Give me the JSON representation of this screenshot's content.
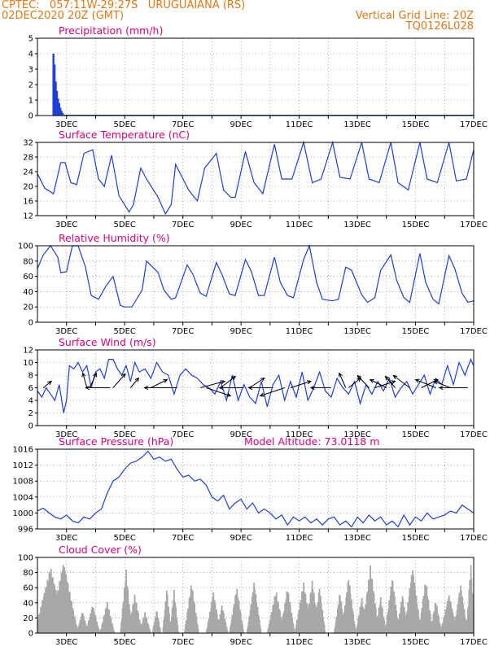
{
  "header": {
    "line1_left": "CPTEC:   057:11W-29:27S   URUGUAIANA (RS)",
    "line2_left": "02DEC2020 20Z (GMT)",
    "line1_right": "Vertical Grid Line: 20Z",
    "line2_right": "TQ0126L028",
    "color": "#e07818"
  },
  "colors": {
    "title": "#e0007a",
    "line": "#1f3fd8",
    "precip_bar": "#1f3fd8",
    "cloud_bar": "#a8a8a8",
    "arrow": "#000000"
  },
  "chart_data": [
    {
      "type": "bar",
      "title": "Precipitation (mm/h)",
      "ylim": [
        0,
        5
      ],
      "yticks": [
        "0",
        "1",
        "2",
        "3",
        "4",
        "5"
      ],
      "xticks": [
        "3DEC",
        "5DEC",
        "7DEC",
        "9DEC",
        "11DEC",
        "13DEC",
        "15DEC",
        "17DEC"
      ],
      "x_day_range": [
        2.0,
        17.0
      ],
      "bars": [
        {
          "day": 2.55,
          "value": 4.0
        },
        {
          "day": 2.59,
          "value": 3.3
        },
        {
          "day": 2.63,
          "value": 2.2
        },
        {
          "day": 2.67,
          "value": 1.6
        },
        {
          "day": 2.71,
          "value": 1.1
        },
        {
          "day": 2.75,
          "value": 0.8
        },
        {
          "day": 2.79,
          "value": 0.5
        },
        {
          "day": 2.83,
          "value": 0.3
        },
        {
          "day": 2.87,
          "value": 0.15
        },
        {
          "day": 2.92,
          "value": 0.05
        }
      ]
    },
    {
      "type": "line",
      "title": "Surface Temperature (nC)",
      "ylim": [
        12,
        32
      ],
      "yticks": [
        "12",
        "16",
        "20",
        "24",
        "28",
        "32"
      ],
      "xticks": [
        "3DEC",
        "5DEC",
        "7DEC",
        "9DEC",
        "11DEC",
        "13DEC",
        "15DEC",
        "17DEC"
      ],
      "x_day_range": [
        2.0,
        17.0
      ],
      "x": [
        2.0,
        2.25,
        2.55,
        2.8,
        2.95,
        3.15,
        3.35,
        3.6,
        3.9,
        4.1,
        4.3,
        4.55,
        4.8,
        5.15,
        5.3,
        5.55,
        5.75,
        6.15,
        6.4,
        6.6,
        6.75,
        7.2,
        7.5,
        7.75,
        8.15,
        8.4,
        8.65,
        8.8,
        9.15,
        9.45,
        9.75,
        10.15,
        10.4,
        10.75,
        11.15,
        11.45,
        11.75,
        12.15,
        12.4,
        12.75,
        13.15,
        13.4,
        13.75,
        14.15,
        14.4,
        14.75,
        15.15,
        15.4,
        15.75,
        16.15,
        16.4,
        16.75,
        17.0
      ],
      "y": [
        23.5,
        19.5,
        18.0,
        26.5,
        26.5,
        21.0,
        20.5,
        29.0,
        30.0,
        22.0,
        20.0,
        28.5,
        17.5,
        13.0,
        15.0,
        25.0,
        22.0,
        17.0,
        12.5,
        15.0,
        26.0,
        19.0,
        16.0,
        25.0,
        29.0,
        19.0,
        17.0,
        17.0,
        29.5,
        21.0,
        18.0,
        31.5,
        22.0,
        22.0,
        32.0,
        21.0,
        22.0,
        32.0,
        22.5,
        22.0,
        32.0,
        22.0,
        21.0,
        32.0,
        21.0,
        19.0,
        32.0,
        22.0,
        21.0,
        32.0,
        21.5,
        22.0,
        30.0
      ]
    },
    {
      "type": "line",
      "title": "Relative Humidity (%)",
      "ylim": [
        0,
        100
      ],
      "yticks": [
        "0",
        "20",
        "40",
        "60",
        "80",
        "100"
      ],
      "xticks": [
        "3DEC",
        "5DEC",
        "7DEC",
        "9DEC",
        "11DEC",
        "13DEC",
        "15DEC",
        "17DEC"
      ],
      "x_day_range": [
        2.0,
        17.0
      ],
      "x": [
        2.0,
        2.2,
        2.45,
        2.7,
        2.8,
        3.0,
        3.2,
        3.4,
        3.65,
        3.85,
        4.1,
        4.35,
        4.6,
        4.85,
        5.0,
        5.25,
        5.6,
        5.75,
        6.15,
        6.35,
        6.6,
        6.75,
        7.15,
        7.35,
        7.6,
        7.8,
        8.15,
        8.35,
        8.6,
        8.8,
        9.15,
        9.35,
        9.6,
        9.8,
        10.15,
        10.35,
        10.6,
        10.8,
        11.15,
        11.35,
        11.6,
        11.8,
        12.15,
        12.35,
        12.6,
        12.8,
        13.15,
        13.35,
        13.6,
        13.8,
        14.15,
        14.35,
        14.6,
        14.8,
        15.15,
        15.35,
        15.6,
        15.8,
        16.15,
        16.35,
        16.6,
        16.8,
        17.0
      ],
      "y": [
        70,
        88,
        100,
        85,
        65,
        66,
        100,
        100,
        72,
        35,
        30,
        47,
        60,
        22,
        20,
        20,
        42,
        80,
        65,
        42,
        30,
        32,
        75,
        62,
        38,
        34,
        78,
        62,
        37,
        35,
        82,
        67,
        35,
        35,
        85,
        52,
        35,
        32,
        82,
        100,
        52,
        30,
        28,
        30,
        72,
        68,
        36,
        26,
        32,
        68,
        88,
        55,
        32,
        26,
        90,
        52,
        30,
        24,
        87,
        70,
        38,
        26,
        28
      ]
    },
    {
      "type": "line",
      "title": "Surface Wind (m/s)",
      "ylim": [
        0,
        12
      ],
      "yticks": [
        "0",
        "2",
        "4",
        "6",
        "8",
        "10",
        "12"
      ],
      "xticks": [
        "3DEC",
        "5DEC",
        "7DEC",
        "9DEC",
        "11DEC",
        "13DEC",
        "15DEC",
        "17DEC"
      ],
      "x_day_range": [
        2.0,
        17.0
      ],
      "x": [
        2.0,
        2.15,
        2.3,
        2.45,
        2.6,
        2.75,
        2.9,
        3.0,
        3.1,
        3.25,
        3.4,
        3.55,
        3.7,
        3.85,
        4.0,
        4.15,
        4.3,
        4.45,
        4.6,
        4.75,
        4.9,
        5.05,
        5.2,
        5.35,
        5.5,
        5.7,
        5.9,
        6.1,
        6.3,
        6.5,
        6.7,
        6.9,
        7.1,
        7.3,
        7.5,
        7.7,
        7.9,
        8.1,
        8.3,
        8.5,
        8.7,
        8.9,
        9.1,
        9.3,
        9.5,
        9.7,
        9.9,
        10.1,
        10.3,
        10.5,
        10.7,
        10.9,
        11.1,
        11.3,
        11.5,
        11.7,
        11.9,
        12.1,
        12.3,
        12.5,
        12.7,
        12.9,
        13.1,
        13.3,
        13.5,
        13.7,
        13.9,
        14.1,
        14.3,
        14.5,
        14.7,
        14.9,
        15.1,
        15.3,
        15.5,
        15.7,
        15.9,
        16.1,
        16.3,
        16.5,
        16.7,
        16.9,
        17.0
      ],
      "y": [
        5.5,
        4.5,
        6.0,
        5.0,
        4.0,
        6.5,
        2.0,
        4.0,
        9.5,
        9.0,
        10.0,
        8.5,
        9.5,
        6.0,
        8.5,
        9.0,
        7.5,
        10.5,
        10.5,
        9.0,
        8.0,
        9.5,
        7.0,
        10.0,
        8.5,
        9.0,
        7.5,
        10.0,
        8.5,
        8.0,
        5.0,
        8.0,
        9.0,
        8.0,
        7.5,
        6.5,
        6.0,
        5.0,
        7.0,
        4.0,
        8.0,
        4.0,
        6.5,
        4.5,
        3.5,
        7.0,
        3.0,
        6.5,
        8.0,
        4.0,
        7.0,
        4.5,
        8.5,
        4.0,
        6.0,
        8.5,
        5.5,
        4.5,
        7.5,
        6.0,
        5.0,
        7.0,
        3.5,
        6.5,
        5.0,
        7.0,
        5.5,
        7.5,
        4.5,
        6.0,
        7.0,
        5.0,
        6.5,
        8.0,
        5.0,
        7.5,
        6.5,
        9.5,
        6.5,
        10.0,
        8.0,
        10.5,
        9.5
      ],
      "arrows": [
        {
          "day": 2.2,
          "dx": 10,
          "dy": -8
        },
        {
          "day": 3.7,
          "dx": -5,
          "dy": -18
        },
        {
          "day": 3.8,
          "dx": 8,
          "dy": -18
        },
        {
          "day": 4.5,
          "dx": -30,
          "dy": 0
        },
        {
          "day": 4.6,
          "dx": 15,
          "dy": -17
        },
        {
          "day": 5.2,
          "dx": 10,
          "dy": -12
        },
        {
          "day": 5.9,
          "dx": 20,
          "dy": -10
        },
        {
          "day": 6.8,
          "dx": -40,
          "dy": 0
        },
        {
          "day": 7.6,
          "dx": 30,
          "dy": -8
        },
        {
          "day": 7.8,
          "dx": 30,
          "dy": 10
        },
        {
          "day": 8.3,
          "dx": 18,
          "dy": -14
        },
        {
          "day": 9.1,
          "dx": -30,
          "dy": 0
        },
        {
          "day": 9.3,
          "dx": 18,
          "dy": -12
        },
        {
          "day": 10.1,
          "dx": -30,
          "dy": 0
        },
        {
          "day": 10.5,
          "dx": -30,
          "dy": 10
        },
        {
          "day": 10.7,
          "dx": 25,
          "dy": -8
        },
        {
          "day": 12.1,
          "dx": -25,
          "dy": 0
        },
        {
          "day": 12.6,
          "dx": -8,
          "dy": -18
        },
        {
          "day": 12.7,
          "dx": 15,
          "dy": -12
        },
        {
          "day": 13.4,
          "dx": -14,
          "dy": -15
        },
        {
          "day": 13.6,
          "dx": 25,
          "dy": -8
        },
        {
          "day": 14.0,
          "dx": -20,
          "dy": -10
        },
        {
          "day": 14.3,
          "dx": -12,
          "dy": -14
        },
        {
          "day": 14.8,
          "dx": -20,
          "dy": -15
        },
        {
          "day": 15.2,
          "dx": 20,
          "dy": -10
        },
        {
          "day": 15.7,
          "dx": -25,
          "dy": -10
        },
        {
          "day": 16.2,
          "dx": -20,
          "dy": -8
        },
        {
          "day": 16.8,
          "dx": -35,
          "dy": 0
        }
      ]
    },
    {
      "type": "line",
      "title": "Surface Pressure (hPa)",
      "subtitle": "Model Altitude: 73.0118 m",
      "ylim": [
        996,
        1016
      ],
      "yticks": [
        "996",
        "1000",
        "1004",
        "1008",
        "1012",
        "1016"
      ],
      "xticks": [
        "3DEC",
        "5DEC",
        "7DEC",
        "9DEC",
        "11DEC",
        "13DEC",
        "15DEC",
        "17DEC"
      ],
      "x_day_range": [
        2.0,
        17.0
      ],
      "x": [
        2.0,
        2.2,
        2.4,
        2.6,
        2.8,
        3.0,
        3.2,
        3.4,
        3.6,
        3.8,
        4.0,
        4.2,
        4.4,
        4.6,
        4.8,
        5.0,
        5.2,
        5.4,
        5.6,
        5.8,
        6.0,
        6.2,
        6.4,
        6.6,
        6.8,
        7.0,
        7.2,
        7.4,
        7.6,
        7.8,
        8.0,
        8.2,
        8.4,
        8.6,
        8.8,
        9.0,
        9.2,
        9.4,
        9.6,
        9.8,
        10.0,
        10.2,
        10.4,
        10.6,
        10.8,
        11.0,
        11.2,
        11.4,
        11.6,
        11.8,
        12.0,
        12.2,
        12.4,
        12.6,
        12.8,
        13.0,
        13.2,
        13.4,
        13.6,
        13.8,
        14.0,
        14.2,
        14.4,
        14.6,
        14.8,
        15.0,
        15.2,
        15.4,
        15.6,
        15.8,
        16.0,
        16.2,
        16.4,
        16.6,
        16.8,
        17.0
      ],
      "y": [
        1000.5,
        1001.2,
        1000,
        999,
        998.5,
        999.5,
        998,
        997.5,
        999,
        998.5,
        1000,
        1001,
        1005,
        1008,
        1009,
        1011,
        1012.5,
        1013,
        1014,
        1015.5,
        1013.5,
        1014,
        1013,
        1013.5,
        1011,
        1009,
        1009.5,
        1008,
        1008.5,
        1007,
        1004,
        1003,
        1004.5,
        1001,
        1002.5,
        1003.5,
        1001,
        1002.5,
        1000,
        1001,
        1000,
        998.5,
        999.5,
        997,
        999,
        998,
        999,
        997.5,
        998.5,
        997,
        998.5,
        999,
        997,
        998,
        996.5,
        999,
        997.5,
        999.5,
        998,
        999,
        997,
        998,
        996.5,
        999.5,
        997,
        999,
        998,
        1000,
        998.5,
        999,
        999.5,
        1000.5,
        1000,
        1002,
        1001,
        1000
      ]
    },
    {
      "type": "bar",
      "title": "Cloud Cover (%)",
      "ylim": [
        0,
        100
      ],
      "yticks": [
        "0",
        "20",
        "40",
        "60",
        "80",
        "100"
      ],
      "xticks": [
        "3DEC",
        "5DEC",
        "7DEC",
        "9DEC",
        "11DEC",
        "13DEC",
        "15DEC",
        "17DEC"
      ],
      "x_day_range": [
        2.0,
        17.0
      ],
      "peaks": [
        {
          "day": 2.45,
          "width": 0.55,
          "value": 88
        },
        {
          "day": 2.9,
          "width": 0.5,
          "value": 95
        },
        {
          "day": 3.55,
          "width": 0.2,
          "value": 30
        },
        {
          "day": 3.9,
          "width": 0.25,
          "value": 38
        },
        {
          "day": 4.4,
          "width": 0.25,
          "value": 42
        },
        {
          "day": 5.05,
          "width": 0.2,
          "value": 85
        },
        {
          "day": 5.35,
          "width": 0.25,
          "value": 52
        },
        {
          "day": 5.7,
          "width": 0.2,
          "value": 28
        },
        {
          "day": 6.1,
          "width": 0.15,
          "value": 32
        },
        {
          "day": 6.45,
          "width": 0.15,
          "value": 60
        },
        {
          "day": 6.7,
          "width": 0.15,
          "value": 58
        },
        {
          "day": 7.3,
          "width": 0.25,
          "value": 68
        },
        {
          "day": 8.05,
          "width": 0.25,
          "value": 55
        },
        {
          "day": 8.35,
          "width": 0.2,
          "value": 38
        },
        {
          "day": 8.85,
          "width": 0.25,
          "value": 62
        },
        {
          "day": 9.45,
          "width": 0.25,
          "value": 68
        },
        {
          "day": 10.2,
          "width": 0.3,
          "value": 57
        },
        {
          "day": 10.6,
          "width": 0.25,
          "value": 62
        },
        {
          "day": 11.15,
          "width": 0.3,
          "value": 68
        },
        {
          "day": 11.45,
          "width": 0.25,
          "value": 70
        },
        {
          "day": 11.7,
          "width": 0.2,
          "value": 62
        },
        {
          "day": 12.4,
          "width": 0.2,
          "value": 55
        },
        {
          "day": 12.7,
          "width": 0.25,
          "value": 75
        },
        {
          "day": 13.15,
          "width": 0.2,
          "value": 48
        },
        {
          "day": 13.45,
          "width": 0.3,
          "value": 90
        },
        {
          "day": 13.8,
          "width": 0.2,
          "value": 48
        },
        {
          "day": 14.2,
          "width": 0.25,
          "value": 75
        },
        {
          "day": 14.55,
          "width": 0.2,
          "value": 52
        },
        {
          "day": 14.9,
          "width": 0.3,
          "value": 88
        },
        {
          "day": 15.35,
          "width": 0.25,
          "value": 72
        },
        {
          "day": 15.7,
          "width": 0.2,
          "value": 45
        },
        {
          "day": 16.15,
          "width": 0.3,
          "value": 52
        },
        {
          "day": 16.55,
          "width": 0.25,
          "value": 65
        },
        {
          "day": 16.9,
          "width": 0.15,
          "value": 95
        }
      ]
    }
  ]
}
